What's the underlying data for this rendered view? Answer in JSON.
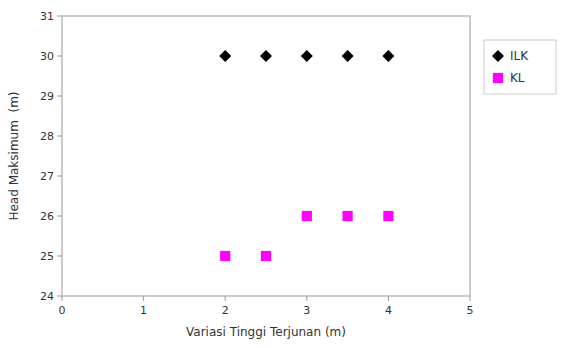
{
  "chart_data": {
    "type": "scatter",
    "xlabel": "Variasi Tinggi Terjunan (m)",
    "ylabel": "Head Maksimum  (m)",
    "series": [
      {
        "name": "ILK",
        "color": "#000000",
        "marker": "diamond",
        "x": [
          2,
          2.5,
          3,
          3.5,
          4
        ],
        "values": [
          30,
          30,
          30,
          30,
          30
        ]
      },
      {
        "name": "KL",
        "color": "#ff00ff",
        "marker": "square",
        "x": [
          2,
          2.5,
          3,
          3.5,
          4
        ],
        "values": [
          25,
          25,
          26,
          26,
          26
        ]
      }
    ],
    "xlim": [
      0,
      5
    ],
    "ylim": [
      24,
      31
    ],
    "xticks": [
      0,
      1,
      2,
      3,
      4,
      5
    ],
    "yticks": [
      24,
      25,
      26,
      27,
      28,
      29,
      30,
      31
    ],
    "grid": false,
    "legend": "right"
  }
}
